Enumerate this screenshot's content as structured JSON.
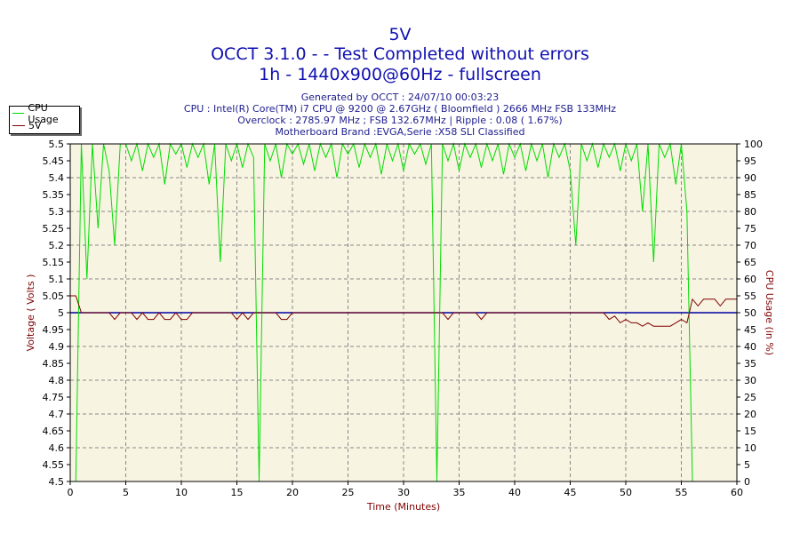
{
  "chart_data": {
    "type": "line",
    "title": "5V",
    "subtitle_lines": [
      "OCCT 3.1.0 -  - Test Completed without errors",
      "1h - 1440x900@60Hz - fullscreen"
    ],
    "info_lines": [
      "Generated by OCCT : 24/07/10 00:03:23",
      "CPU : Intel(R) Core(TM) i7 CPU @ 9200 @ 2.67GHz ( Bloomfield ) 2666 MHz FSB 133MHz",
      "Overclock : 2785.97 MHz ; FSB 132.67MHz | Ripple : 0.08 ( 1.67%)",
      "Motherboard Brand :EVGA,Serie :X58 SLI Classified"
    ],
    "xlabel": "Time (Minutes)",
    "ylabel": "Voltage ( Volts )",
    "y2label": "CPU Usage (in %)",
    "xlim": [
      0,
      60
    ],
    "ylim": [
      4.5,
      5.5
    ],
    "y2lim": [
      0,
      100
    ],
    "xticks": [
      0,
      5,
      10,
      15,
      20,
      25,
      30,
      35,
      40,
      45,
      50,
      55,
      60
    ],
    "yticks": [
      "4.5",
      "4.55",
      "4.6",
      "4.65",
      "4.7",
      "4.75",
      "4.8",
      "4.85",
      "4.9",
      "4.95",
      "5",
      "5.05",
      "5.1",
      "5.15",
      "5.2",
      "5.25",
      "5.3",
      "5.35",
      "5.4",
      "5.45",
      "5.5"
    ],
    "y2ticks": [
      0,
      5,
      10,
      15,
      20,
      25,
      30,
      35,
      40,
      45,
      50,
      55,
      60,
      65,
      70,
      75,
      80,
      85,
      90,
      95,
      100
    ],
    "grid": true,
    "legend": {
      "placement": "top-left",
      "entries": [
        "CPU Usage",
        "5V"
      ]
    },
    "reference_line": {
      "value": 5.0,
      "color": "#0000a0"
    },
    "x_step": 0.5,
    "series": [
      {
        "name": "CPU Usage",
        "axis": "right",
        "color": "#00dd00",
        "values": [
          0,
          0,
          100,
          60,
          100,
          75,
          100,
          92,
          70,
          100,
          100,
          95,
          100,
          92,
          100,
          96,
          100,
          88,
          100,
          97,
          100,
          93,
          100,
          96,
          100,
          88,
          100,
          65,
          100,
          95,
          100,
          93,
          100,
          96,
          0,
          100,
          95,
          100,
          90,
          100,
          97,
          100,
          94,
          100,
          92,
          100,
          96,
          100,
          90,
          100,
          97,
          100,
          93,
          100,
          96,
          100,
          91,
          100,
          95,
          100,
          92,
          100,
          97,
          100,
          94,
          100,
          0,
          100,
          95,
          100,
          92,
          100,
          96,
          100,
          93,
          100,
          95,
          100,
          91,
          100,
          96,
          100,
          92,
          100,
          95,
          100,
          90,
          100,
          96,
          100,
          92,
          70,
          100,
          95,
          100,
          93,
          100,
          96,
          100,
          92,
          100,
          95,
          100,
          80,
          100,
          65,
          100,
          96,
          100,
          88,
          100,
          80,
          0,
          0,
          0,
          0,
          0,
          0,
          0,
          0,
          0
        ]
      },
      {
        "name": "5V",
        "axis": "left",
        "color": "#800000",
        "values": [
          5.05,
          5.05,
          5.0,
          5.0,
          5.0,
          5.0,
          5.0,
          5.0,
          4.98,
          5.0,
          5.0,
          5.0,
          4.98,
          5.0,
          4.98,
          4.98,
          5.0,
          4.98,
          4.98,
          5.0,
          4.98,
          4.98,
          5.0,
          5.0,
          5.0,
          5.0,
          5.0,
          5.0,
          5.0,
          5.0,
          4.98,
          5.0,
          4.98,
          5.0,
          5.0,
          5.0,
          5.0,
          5.0,
          4.98,
          4.98,
          5.0,
          5.0,
          5.0,
          5.0,
          5.0,
          5.0,
          5.0,
          5.0,
          5.0,
          5.0,
          5.0,
          5.0,
          5.0,
          5.0,
          5.0,
          5.0,
          5.0,
          5.0,
          5.0,
          5.0,
          5.0,
          5.0,
          5.0,
          5.0,
          5.0,
          5.0,
          5.0,
          5.0,
          4.98,
          5.0,
          5.0,
          5.0,
          5.0,
          5.0,
          4.98,
          5.0,
          5.0,
          5.0,
          5.0,
          5.0,
          5.0,
          5.0,
          5.0,
          5.0,
          5.0,
          5.0,
          5.0,
          5.0,
          5.0,
          5.0,
          5.0,
          5.0,
          5.0,
          5.0,
          5.0,
          5.0,
          5.0,
          4.98,
          4.99,
          4.97,
          4.98,
          4.97,
          4.97,
          4.96,
          4.97,
          4.96,
          4.96,
          4.96,
          4.96,
          4.97,
          4.98,
          4.97,
          5.04,
          5.02,
          5.04,
          5.04,
          5.04,
          5.02,
          5.04,
          5.04,
          5.04
        ]
      }
    ]
  }
}
